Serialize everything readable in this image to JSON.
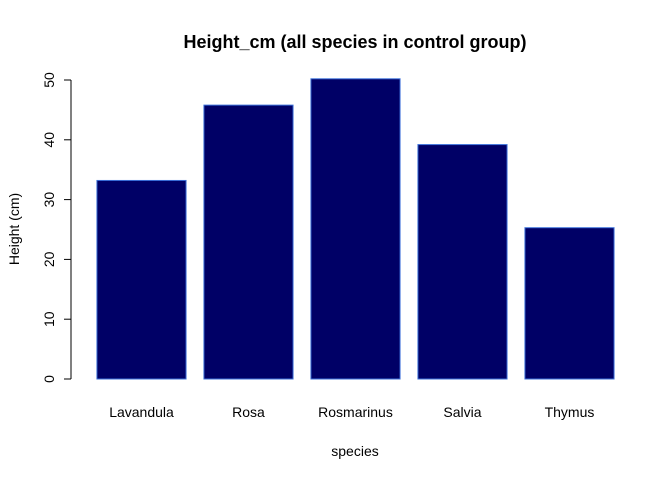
{
  "chart_data": {
    "type": "bar",
    "title": "Height_cm (all species in control group)",
    "xlabel": "species",
    "ylabel": "Height (cm)",
    "categories": [
      "Lavandula",
      "Rosa",
      "Rosmarinus",
      "Salvia",
      "Thymus"
    ],
    "values": [
      33.2,
      45.8,
      50.2,
      39.2,
      25.3
    ],
    "ylim": [
      0,
      50
    ],
    "yticks": [
      "0",
      "10",
      "20",
      "30",
      "40",
      "50"
    ],
    "bar_color": "#000066",
    "bar_border_color": "#3B6FD8",
    "grid": false,
    "legend": "none"
  }
}
